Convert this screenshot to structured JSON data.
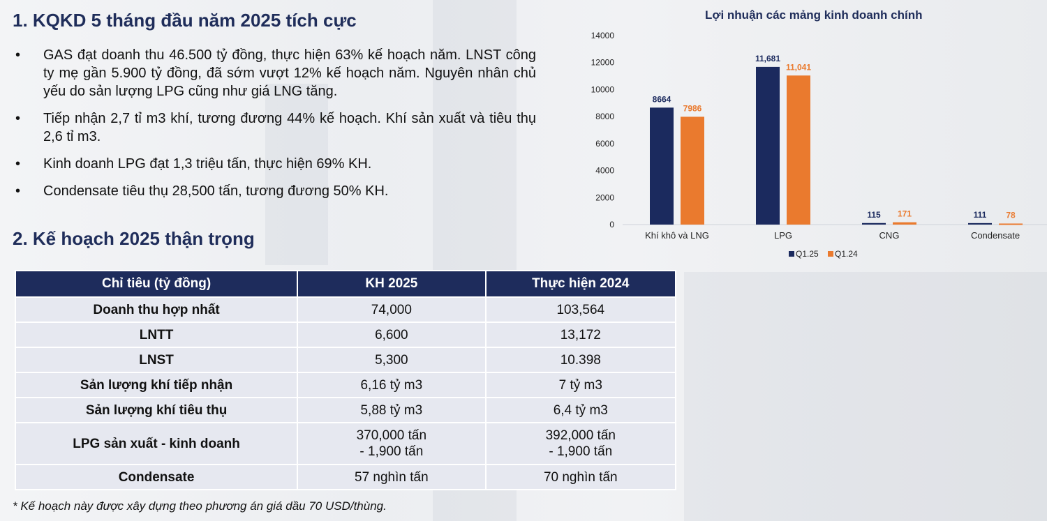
{
  "section1": {
    "title": "1. KQKD 5 tháng đầu năm 2025 tích cực",
    "bullets": [
      "GAS đạt doanh thu 46.500 tỷ đồng, thực hiện 63% kế hoạch năm. LNST công ty mẹ gần 5.900 tỷ đồng, đã sớm vượt 12% kế hoạch năm. Nguyên nhân chủ yếu do sản lượng LPG cũng như giá LNG tăng.",
      "Tiếp nhận 2,7 tỉ m3 khí, tương đương 44% kế hoạch. Khí sản xuất và tiêu thụ 2,6 tỉ m3.",
      "Kinh doanh LPG đạt 1,3 triệu tấn, thực hiện 69% KH.",
      "Condensate tiêu thụ 28,500 tấn, tương đương 50% KH."
    ],
    "bullet_symbol": "•"
  },
  "section2": {
    "title": "2. Kế hoạch 2025 thận trọng",
    "table": {
      "headers": [
        "Chỉ tiêu (tỷ đồng)",
        "KH 2025",
        "Thực hiện 2024"
      ],
      "rows": [
        [
          "Doanh thu hợp nhất",
          "74,000",
          "103,564"
        ],
        [
          "LNTT",
          "6,600",
          "13,172"
        ],
        [
          "LNST",
          "5,300",
          "10.398"
        ],
        [
          "Sản lượng khí tiếp nhận",
          "6,16 tỷ m3",
          "7 tỷ m3"
        ],
        [
          "Sản lượng khí tiêu thụ",
          "5,88 tỷ m3",
          "6,4 tỷ m3"
        ],
        [
          "LPG sản xuất - kinh doanh",
          "370,000 tấn\n- 1,900 tấn",
          "392,000 tấn\n- 1,900 tấn"
        ],
        [
          "Condensate",
          "57 nghìn tấn",
          "70 nghìn tấn"
        ]
      ]
    },
    "note": "* Kế hoạch này được xây dựng theo phương án giá dầu 70 USD/thùng."
  },
  "chart_data": {
    "type": "bar",
    "title": "Lợi nhuận các mảng kinh doanh chính",
    "categories": [
      "Khí khô và LNG",
      "LPG",
      "CNG",
      "Condensate"
    ],
    "series": [
      {
        "name": "Q1.25",
        "color": "#1b2a5e",
        "values": [
          8664,
          11681,
          115,
          111
        ],
        "labels": [
          "8664",
          "11,681",
          "115",
          "111"
        ]
      },
      {
        "name": "Q1.24",
        "color": "#ea7a2e",
        "values": [
          7986,
          11041,
          171,
          78
        ],
        "labels": [
          "7986",
          "11,041",
          "171",
          "78"
        ]
      }
    ],
    "ylim": [
      0,
      14000
    ],
    "yticks": [
      "0",
      "2000",
      "4000",
      "6000",
      "8000",
      "10000",
      "12000",
      "14000"
    ],
    "legend": "bottom",
    "grid": false
  }
}
